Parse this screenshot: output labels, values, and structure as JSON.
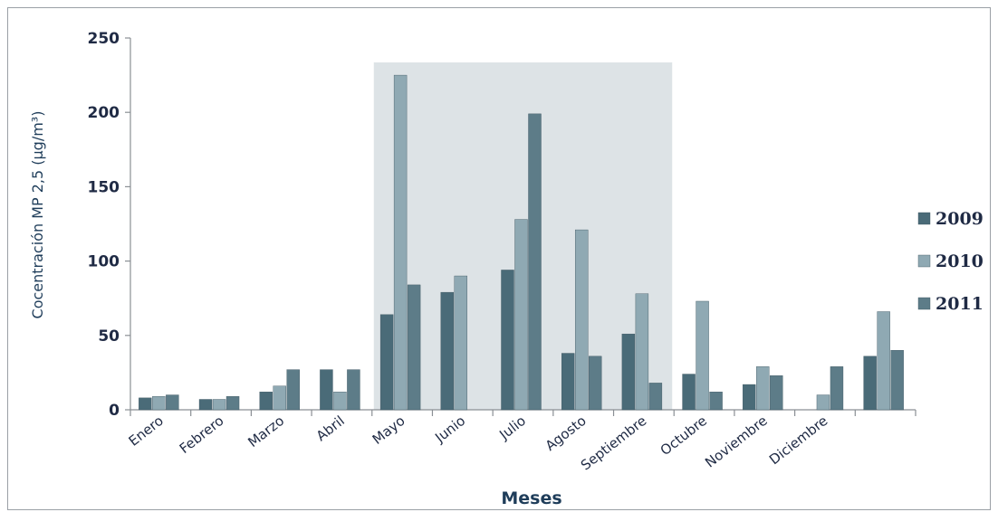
{
  "chart_data": {
    "type": "bar",
    "title": "",
    "xlabel": "Meses",
    "ylabel": "Cocentración MP 2,5 (µg/m³)",
    "ylim": [
      0,
      250
    ],
    "yticks": [
      0,
      50,
      100,
      150,
      200,
      250
    ],
    "grid": false,
    "legend_position": "right",
    "categories": [
      "Enero",
      "Febrero",
      "Marzo",
      "Abril",
      "Mayo",
      "Junio",
      "Julio",
      "Agosto",
      "Septiembre",
      "Octubre",
      "Noviembre",
      "Diciembre",
      ""
    ],
    "series": [
      {
        "name": "2009",
        "color": "#4a6b78",
        "values": [
          8,
          7,
          12,
          27,
          64,
          79,
          94,
          38,
          51,
          24,
          17,
          0,
          36
        ]
      },
      {
        "name": "2010",
        "color": "#8fa9b3",
        "values": [
          9,
          7,
          16,
          12,
          225,
          90,
          128,
          121,
          78,
          73,
          29,
          10,
          66
        ]
      },
      {
        "name": "2011",
        "color": "#5d7c88",
        "values": [
          10,
          9,
          27,
          27,
          84,
          0,
          199,
          36,
          18,
          12,
          23,
          29,
          40
        ]
      }
    ],
    "highlight_region": {
      "from_category": "Mayo",
      "to_category": "Septiembre",
      "color": "#dde3e6"
    }
  }
}
